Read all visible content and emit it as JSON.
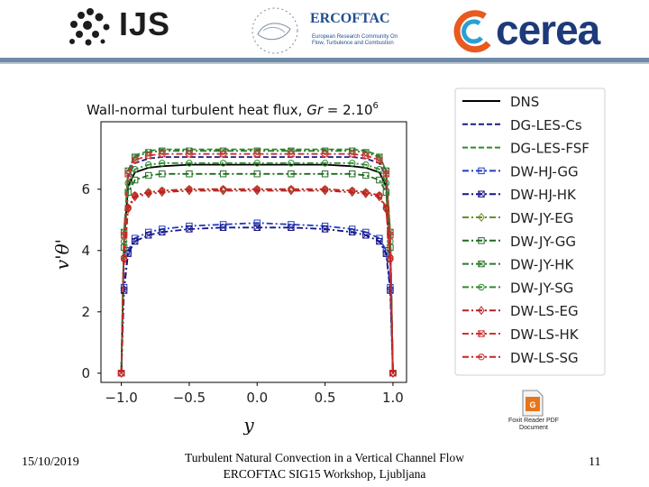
{
  "header": {
    "ijs_label": "IJS",
    "ercoftac_title": "ERCOFTAC",
    "ercoftac_subtitle": "European Research Community On Flow, Turbulence and Combustion",
    "cerea_label": "cerea",
    "colors": {
      "bar": "#6f8aa6",
      "cerea_orange": "#e85a1e",
      "cerea_blue": "#1d3a7a",
      "ercoftac_blue": "#1f4e91"
    }
  },
  "attachment": {
    "icon": "pdf-file-icon",
    "caption": "Foxit Reader PDF Document"
  },
  "footer": {
    "date": "15/10/2019",
    "line1": "Turbulent Natural Convection in a Vertical Channel Flow",
    "line2": "ERCOFTAC SIG15 Workshop, Ljubljana",
    "page_number": "11"
  },
  "chart_data": {
    "type": "line",
    "title": "Wall-normal turbulent heat flux, Gr = 2.10^6",
    "title_prefix": "Wall-normal turbulent heat flux, ",
    "title_gr": "Gr",
    "title_eq": " = 2.10",
    "title_exp": "6",
    "xlabel": "y",
    "ylabel": "v'θ'",
    "xlim": [
      -1.15,
      1.1
    ],
    "ylim": [
      -0.3,
      8.2
    ],
    "xticks": [
      {
        "v": -1.0,
        "label": "−1.0"
      },
      {
        "v": -0.5,
        "label": "−0.5"
      },
      {
        "v": 0.0,
        "label": "0.0"
      },
      {
        "v": 0.5,
        "label": "0.5"
      },
      {
        "v": 1.0,
        "label": "1.0"
      }
    ],
    "yticks": [
      {
        "v": 0,
        "label": "0"
      },
      {
        "v": 2,
        "label": "2"
      },
      {
        "v": 4,
        "label": "4"
      },
      {
        "v": 6,
        "label": "6"
      }
    ],
    "grid": false,
    "legend_position": "right (outside)",
    "x": [
      -1.0,
      -0.98,
      -0.95,
      -0.9,
      -0.8,
      -0.7,
      -0.5,
      -0.25,
      0.0,
      0.25,
      0.5,
      0.7,
      0.8,
      0.9,
      0.95,
      0.98,
      1.0
    ],
    "series": [
      {
        "name": "DNS",
        "color": "#000000",
        "dash": "solid",
        "marker": "none",
        "values": [
          0,
          4.3,
          6.1,
          6.55,
          6.7,
          6.75,
          6.8,
          6.8,
          6.8,
          6.8,
          6.8,
          6.75,
          6.7,
          6.55,
          6.1,
          4.3,
          0
        ]
      },
      {
        "name": "DG-LES-Cs",
        "color": "#1a1a8c",
        "dash": "dashed",
        "marker": "none",
        "values": [
          0,
          4.5,
          6.4,
          6.85,
          7.0,
          7.05,
          7.05,
          7.05,
          7.05,
          7.05,
          7.05,
          7.05,
          7.0,
          6.85,
          6.4,
          4.5,
          0
        ]
      },
      {
        "name": "DG-LES-FSF",
        "color": "#2e8b2e",
        "dash": "dashed",
        "marker": "none",
        "values": [
          0,
          4.6,
          6.6,
          7.1,
          7.25,
          7.3,
          7.3,
          7.3,
          7.3,
          7.3,
          7.3,
          7.3,
          7.25,
          7.1,
          6.6,
          4.6,
          0
        ]
      },
      {
        "name": "DW-HJ-GG",
        "color": "#1f3fbf",
        "dash": "dashdot",
        "marker": "square",
        "values": [
          0,
          2.8,
          4.0,
          4.4,
          4.6,
          4.7,
          4.8,
          4.85,
          4.9,
          4.85,
          4.8,
          4.7,
          4.6,
          4.4,
          4.0,
          2.8,
          0
        ]
      },
      {
        "name": "DW-HJ-HK",
        "color": "#14148c",
        "dash": "dashdot",
        "marker": "x-square",
        "values": [
          0,
          2.7,
          3.9,
          4.3,
          4.5,
          4.6,
          4.7,
          4.75,
          4.75,
          4.75,
          4.7,
          4.6,
          4.5,
          4.3,
          3.9,
          2.7,
          0
        ]
      },
      {
        "name": "DW-JY-EG",
        "color": "#6b8e23",
        "dash": "dashdot",
        "marker": "diamond",
        "values": [
          0,
          3.8,
          5.4,
          5.8,
          5.9,
          5.95,
          6.0,
          6.0,
          6.0,
          6.0,
          6.0,
          5.95,
          5.9,
          5.8,
          5.4,
          3.8,
          0
        ]
      },
      {
        "name": "DW-JY-GG",
        "color": "#1e6b1e",
        "dash": "dashdot",
        "marker": "square",
        "values": [
          0,
          4.1,
          5.9,
          6.3,
          6.45,
          6.5,
          6.5,
          6.5,
          6.5,
          6.5,
          6.5,
          6.5,
          6.45,
          6.3,
          5.9,
          4.1,
          0
        ]
      },
      {
        "name": "DW-JY-HK",
        "color": "#2d7a2d",
        "dash": "dashdot",
        "marker": "x-square",
        "values": [
          0,
          4.6,
          6.6,
          7.05,
          7.2,
          7.25,
          7.25,
          7.25,
          7.25,
          7.25,
          7.25,
          7.25,
          7.2,
          7.05,
          6.6,
          4.6,
          0
        ]
      },
      {
        "name": "DW-JY-SG",
        "color": "#2e8b2e",
        "dash": "dashdot",
        "marker": "circle",
        "values": [
          0,
          4.3,
          6.2,
          6.65,
          6.8,
          6.85,
          6.85,
          6.85,
          6.85,
          6.85,
          6.85,
          6.85,
          6.8,
          6.65,
          6.2,
          4.3,
          0
        ]
      },
      {
        "name": "DW-LS-EG",
        "color": "#b22222",
        "dash": "dashdot",
        "marker": "diamond",
        "values": [
          0,
          3.7,
          5.35,
          5.75,
          5.85,
          5.9,
          5.95,
          5.95,
          5.95,
          5.95,
          5.95,
          5.9,
          5.85,
          5.75,
          5.35,
          3.7,
          0
        ]
      },
      {
        "name": "DW-LS-HK",
        "color": "#cc3333",
        "dash": "dashdot",
        "marker": "x-square",
        "values": [
          0,
          4.5,
          6.5,
          6.95,
          7.1,
          7.15,
          7.15,
          7.15,
          7.15,
          7.15,
          7.15,
          7.15,
          7.1,
          6.95,
          6.5,
          4.5,
          0
        ]
      },
      {
        "name": "DW-LS-SG",
        "color": "#cc2222",
        "dash": "dashdot",
        "marker": "circle",
        "values": [
          0,
          3.75,
          5.4,
          5.8,
          5.9,
          5.95,
          6.0,
          6.0,
          6.0,
          6.0,
          6.0,
          5.95,
          5.9,
          5.8,
          5.4,
          3.75,
          0
        ]
      }
    ]
  }
}
